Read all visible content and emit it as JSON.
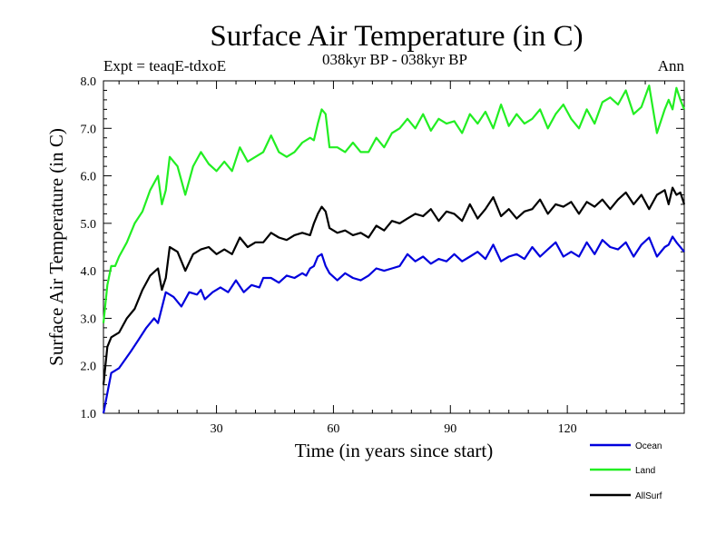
{
  "header": {
    "experiment": "Expt = teaqE-tdxoE",
    "period": "038kyr BP - 038kyr BP",
    "season": "Ann"
  },
  "chart_data": {
    "type": "line",
    "title": "Surface Air Temperature (in C)",
    "xlabel": "Time (in years since start)",
    "ylabel": "Surface Air Temperature (in C)",
    "xlim": [
      1,
      150
    ],
    "ylim": [
      1.0,
      8.0
    ],
    "xticks": [
      30,
      60,
      90,
      120
    ],
    "xtick_labels": [
      "30",
      "60",
      "90",
      "120"
    ],
    "yticks": [
      1.0,
      2.0,
      3.0,
      4.0,
      5.0,
      6.0,
      7.0,
      8.0
    ],
    "ytick_labels": [
      "1.0",
      "2.0",
      "3.0",
      "4.0",
      "5.0",
      "6.0",
      "7.0",
      "8.0"
    ],
    "grid": false,
    "legend_position": "bottom-right outside",
    "series": [
      {
        "name": "Ocean",
        "color": "#0000dd",
        "x": [
          1,
          3,
          5,
          8,
          10,
          12,
          14,
          15,
          17,
          19,
          21,
          23,
          25,
          26,
          27,
          29,
          31,
          33,
          35,
          37,
          39,
          41,
          42,
          44,
          46,
          48,
          50,
          52,
          53,
          54,
          55,
          56,
          57,
          58,
          59,
          61,
          63,
          65,
          67,
          69,
          71,
          73,
          75,
          77,
          79,
          81,
          83,
          85,
          87,
          89,
          91,
          93,
          95,
          97,
          99,
          101,
          103,
          105,
          107,
          109,
          111,
          113,
          115,
          117,
          119,
          121,
          123,
          125,
          127,
          129,
          131,
          133,
          135,
          137,
          139,
          141,
          143,
          145,
          146,
          147,
          148,
          150
        ],
        "values": [
          1.0,
          1.85,
          1.95,
          2.3,
          2.55,
          2.8,
          3.0,
          2.9,
          3.55,
          3.45,
          3.25,
          3.55,
          3.5,
          3.6,
          3.4,
          3.55,
          3.65,
          3.55,
          3.8,
          3.55,
          3.7,
          3.65,
          3.85,
          3.85,
          3.75,
          3.9,
          3.85,
          3.95,
          3.9,
          4.05,
          4.1,
          4.3,
          4.35,
          4.1,
          3.95,
          3.8,
          3.95,
          3.85,
          3.8,
          3.9,
          4.05,
          4.0,
          4.05,
          4.1,
          4.35,
          4.2,
          4.3,
          4.15,
          4.25,
          4.2,
          4.35,
          4.2,
          4.3,
          4.4,
          4.25,
          4.55,
          4.2,
          4.3,
          4.35,
          4.25,
          4.5,
          4.3,
          4.45,
          4.6,
          4.3,
          4.4,
          4.3,
          4.6,
          4.35,
          4.65,
          4.5,
          4.45,
          4.6,
          4.3,
          4.55,
          4.7,
          4.3,
          4.5,
          4.55,
          4.72,
          4.6,
          4.4
        ]
      },
      {
        "name": "Land",
        "color": "#22ee22",
        "x": [
          1,
          2,
          3,
          4,
          5,
          7,
          9,
          11,
          13,
          15,
          16,
          17,
          18,
          20,
          22,
          24,
          26,
          28,
          30,
          32,
          34,
          36,
          38,
          40,
          42,
          44,
          46,
          48,
          50,
          52,
          54,
          55,
          56,
          57,
          58,
          59,
          61,
          63,
          65,
          67,
          69,
          71,
          73,
          75,
          77,
          79,
          81,
          83,
          85,
          87,
          89,
          91,
          93,
          95,
          97,
          99,
          101,
          103,
          105,
          107,
          109,
          111,
          113,
          115,
          117,
          119,
          121,
          123,
          125,
          127,
          129,
          131,
          133,
          135,
          137,
          139,
          141,
          143,
          145,
          146,
          147,
          148,
          149,
          150
        ],
        "values": [
          2.9,
          3.7,
          4.1,
          4.1,
          4.3,
          4.6,
          5.0,
          5.25,
          5.7,
          6.0,
          5.4,
          5.7,
          6.4,
          6.2,
          5.6,
          6.2,
          6.5,
          6.25,
          6.1,
          6.3,
          6.1,
          6.6,
          6.3,
          6.4,
          6.5,
          6.85,
          6.5,
          6.4,
          6.5,
          6.7,
          6.8,
          6.75,
          7.1,
          7.4,
          7.3,
          6.6,
          6.6,
          6.5,
          6.7,
          6.5,
          6.5,
          6.8,
          6.6,
          6.9,
          7.0,
          7.2,
          7.0,
          7.3,
          6.95,
          7.2,
          7.1,
          7.15,
          6.9,
          7.3,
          7.1,
          7.35,
          7.0,
          7.5,
          7.05,
          7.3,
          7.1,
          7.2,
          7.4,
          7.0,
          7.3,
          7.5,
          7.2,
          7.0,
          7.4,
          7.1,
          7.55,
          7.65,
          7.5,
          7.8,
          7.3,
          7.45,
          7.9,
          6.9,
          7.4,
          7.6,
          7.4,
          7.85,
          7.6,
          7.4
        ]
      },
      {
        "name": "AllSurf",
        "color": "#000000",
        "x": [
          1,
          2,
          3,
          4,
          5,
          7,
          9,
          11,
          13,
          15,
          16,
          17,
          18,
          20,
          22,
          24,
          26,
          28,
          30,
          32,
          34,
          36,
          38,
          40,
          42,
          44,
          46,
          48,
          50,
          52,
          54,
          55,
          56,
          57,
          58,
          59,
          61,
          63,
          65,
          67,
          69,
          71,
          73,
          75,
          77,
          79,
          81,
          83,
          85,
          87,
          89,
          91,
          93,
          95,
          97,
          99,
          101,
          103,
          105,
          107,
          109,
          111,
          113,
          115,
          117,
          119,
          121,
          123,
          125,
          127,
          129,
          131,
          133,
          135,
          137,
          139,
          141,
          143,
          145,
          146,
          147,
          148,
          149,
          150
        ],
        "values": [
          1.6,
          2.4,
          2.6,
          2.65,
          2.7,
          3.0,
          3.2,
          3.6,
          3.9,
          4.05,
          3.6,
          3.85,
          4.5,
          4.4,
          4.0,
          4.35,
          4.45,
          4.5,
          4.35,
          4.45,
          4.35,
          4.7,
          4.5,
          4.6,
          4.6,
          4.8,
          4.7,
          4.65,
          4.75,
          4.8,
          4.75,
          5.0,
          5.2,
          5.35,
          5.25,
          4.9,
          4.8,
          4.85,
          4.75,
          4.8,
          4.7,
          4.95,
          4.85,
          5.05,
          5.0,
          5.1,
          5.2,
          5.15,
          5.3,
          5.05,
          5.25,
          5.2,
          5.05,
          5.4,
          5.1,
          5.3,
          5.55,
          5.15,
          5.3,
          5.1,
          5.25,
          5.3,
          5.5,
          5.2,
          5.4,
          5.35,
          5.45,
          5.2,
          5.45,
          5.35,
          5.5,
          5.3,
          5.5,
          5.65,
          5.4,
          5.6,
          5.3,
          5.6,
          5.7,
          5.4,
          5.75,
          5.6,
          5.65,
          5.4
        ]
      }
    ]
  }
}
